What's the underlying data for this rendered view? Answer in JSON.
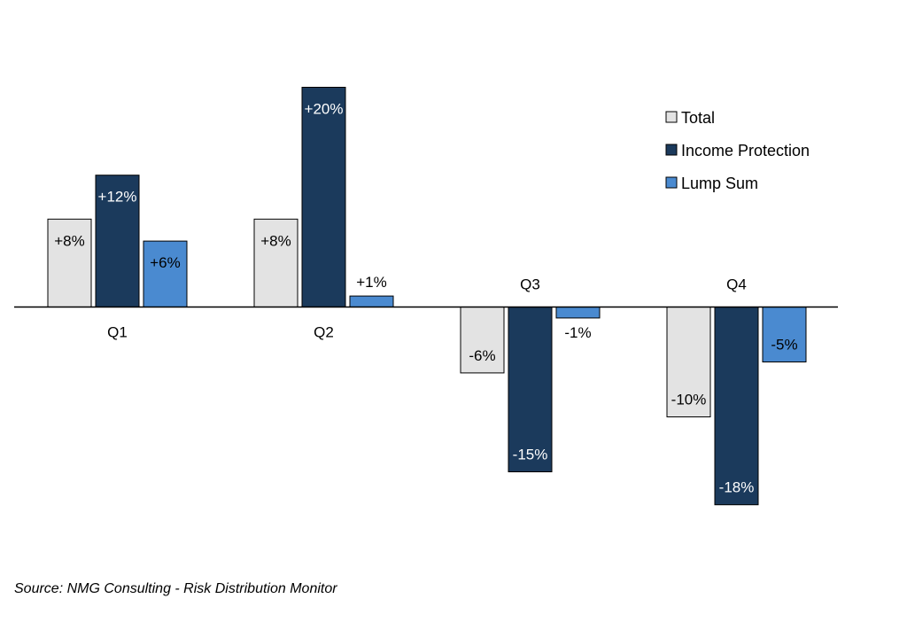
{
  "chart_data": {
    "type": "bar",
    "categories": [
      "Q1",
      "Q2",
      "Q3",
      "Q4"
    ],
    "series": [
      {
        "name": "Total",
        "values": [
          8,
          8,
          -6,
          -10
        ],
        "labels": [
          "+8%",
          "+8%",
          "-6%",
          "-10%"
        ],
        "color": "#e3e3e3"
      },
      {
        "name": "Income Protection",
        "values": [
          12,
          20,
          -15,
          -18
        ],
        "labels": [
          "+12%",
          "+20%",
          "-15%",
          "-18%"
        ],
        "color": "#1b3a5c"
      },
      {
        "name": "Lump Sum",
        "values": [
          6,
          1,
          -1,
          -5
        ],
        "labels": [
          "+6%",
          "+1%",
          "-1%",
          "-5%"
        ],
        "color": "#4a8ad0"
      }
    ],
    "ylim": [
      -20,
      21
    ],
    "grid": false,
    "legend_position": "top-right",
    "title": "",
    "xlabel": "",
    "ylabel": ""
  },
  "source": "Source: NMG Consulting - Risk Distribution Monitor"
}
